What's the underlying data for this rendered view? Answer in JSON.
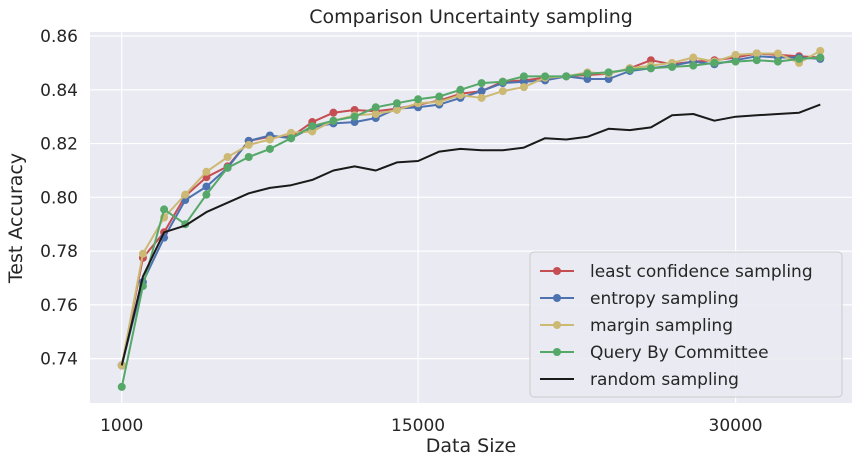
{
  "chart_data": {
    "type": "line",
    "title": "Comparison Uncertainty sampling",
    "xlabel": "Data Size",
    "ylabel": "Test Accuracy",
    "xlim": [
      -500,
      35500
    ],
    "ylim": [
      0.7235,
      0.8615
    ],
    "xticks": [
      1000,
      15000,
      30000
    ],
    "xtick_labels": [
      "1000",
      "15000",
      "30000"
    ],
    "yticks": [
      0.74,
      0.76,
      0.78,
      0.8,
      0.82,
      0.84,
      0.86
    ],
    "ytick_labels": [
      "0.74",
      "0.76",
      "0.78",
      "0.80",
      "0.82",
      "0.84",
      "0.86"
    ],
    "grid": true,
    "legend_position": "lower-right",
    "x": [
      1000,
      2000,
      3000,
      4000,
      5000,
      6000,
      7000,
      8000,
      9000,
      10000,
      11000,
      12000,
      13000,
      14000,
      15000,
      16000,
      17000,
      18000,
      19000,
      20000,
      21000,
      22000,
      23000,
      24000,
      25000,
      26000,
      27000,
      28000,
      29000,
      30000,
      31000,
      32000,
      33000,
      34000
    ],
    "series": [
      {
        "name": "least confidence sampling",
        "color": "#c44e52",
        "marker": true,
        "values": [
          0.7375,
          0.7775,
          0.787,
          0.8005,
          0.8075,
          0.8115,
          0.821,
          0.8225,
          0.8225,
          0.828,
          0.8315,
          0.8325,
          0.832,
          0.833,
          0.8345,
          0.836,
          0.8385,
          0.8395,
          0.843,
          0.8435,
          0.8445,
          0.845,
          0.8455,
          0.846,
          0.848,
          0.851,
          0.8495,
          0.8505,
          0.851,
          0.852,
          0.8535,
          0.853,
          0.8525,
          0.852
        ]
      },
      {
        "name": "entropy sampling",
        "color": "#4c72b0",
        "marker": true,
        "values": [
          0.7375,
          0.7685,
          0.785,
          0.799,
          0.804,
          0.811,
          0.821,
          0.823,
          0.822,
          0.826,
          0.8275,
          0.828,
          0.8295,
          0.833,
          0.8335,
          0.8345,
          0.837,
          0.8395,
          0.8425,
          0.843,
          0.8435,
          0.845,
          0.844,
          0.844,
          0.847,
          0.848,
          0.849,
          0.8505,
          0.8495,
          0.851,
          0.8525,
          0.852,
          0.852,
          0.8515
        ]
      },
      {
        "name": "margin sampling",
        "color": "#ccb974",
        "marker": true,
        "values": [
          0.7375,
          0.779,
          0.7925,
          0.801,
          0.8095,
          0.815,
          0.8195,
          0.8215,
          0.824,
          0.8245,
          0.8285,
          0.8305,
          0.831,
          0.8325,
          0.835,
          0.8355,
          0.838,
          0.837,
          0.8395,
          0.841,
          0.8445,
          0.845,
          0.8465,
          0.846,
          0.848,
          0.849,
          0.85,
          0.852,
          0.8505,
          0.853,
          0.8535,
          0.8535,
          0.85,
          0.8545
        ]
      },
      {
        "name": "Query By Committee",
        "color": "#55a868",
        "marker": true,
        "values": [
          0.7295,
          0.767,
          0.7955,
          0.79,
          0.801,
          0.811,
          0.815,
          0.818,
          0.822,
          0.8265,
          0.8285,
          0.83,
          0.8335,
          0.835,
          0.8365,
          0.8375,
          0.84,
          0.8425,
          0.843,
          0.845,
          0.845,
          0.845,
          0.846,
          0.8465,
          0.8475,
          0.848,
          0.8485,
          0.849,
          0.85,
          0.8505,
          0.851,
          0.8505,
          0.8515,
          0.852
        ]
      },
      {
        "name": "random sampling",
        "color": "#1a1a1a",
        "marker": false,
        "values": [
          0.7375,
          0.7705,
          0.787,
          0.7895,
          0.7945,
          0.798,
          0.8015,
          0.8035,
          0.8045,
          0.8065,
          0.81,
          0.8115,
          0.81,
          0.813,
          0.8135,
          0.817,
          0.818,
          0.8175,
          0.8175,
          0.8185,
          0.822,
          0.8215,
          0.8225,
          0.8255,
          0.825,
          0.826,
          0.8305,
          0.831,
          0.8285,
          0.83,
          0.8305,
          0.831,
          0.8315,
          0.8345
        ]
      }
    ]
  }
}
